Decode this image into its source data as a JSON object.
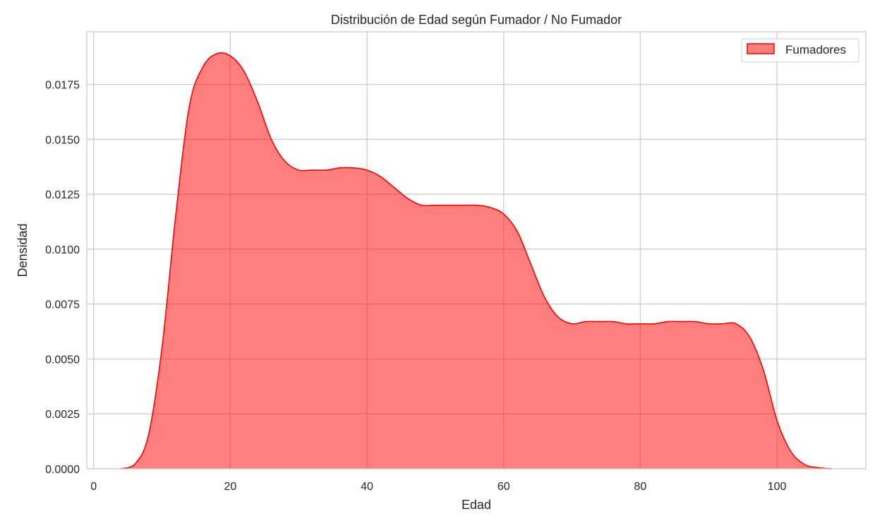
{
  "chart_data": {
    "type": "area",
    "title": "Distribución de Edad según Fumador / No Fumador",
    "xlabel": "Edad",
    "ylabel": "Densidad",
    "xlim": [
      -1,
      113
    ],
    "ylim": [
      0,
      0.0199
    ],
    "xticks": [
      0,
      20,
      40,
      60,
      80,
      100
    ],
    "xtick_labels": [
      "0",
      "20",
      "40",
      "60",
      "80",
      "100"
    ],
    "yticks": [
      0,
      0.0025,
      0.005,
      0.0075,
      0.01,
      0.0125,
      0.015,
      0.0175
    ],
    "ytick_labels": [
      "0.0000",
      "0.0025",
      "0.0050",
      "0.0075",
      "0.0100",
      "0.0125",
      "0.0150",
      "0.0175"
    ],
    "grid": true,
    "legend_position": "top-right",
    "series": [
      {
        "name": "Fumadores",
        "color": "#ff0000",
        "fill_color": "#ff7f7f",
        "x": [
          4,
          6,
          8,
          10,
          12,
          14,
          16,
          18,
          20,
          22,
          24,
          26,
          28,
          30,
          32,
          34,
          36,
          38,
          40,
          42,
          44,
          46,
          48,
          50,
          52,
          54,
          56,
          58,
          60,
          62,
          64,
          66,
          68,
          70,
          72,
          74,
          76,
          78,
          80,
          82,
          84,
          86,
          88,
          90,
          92,
          94,
          96,
          98,
          100,
          102,
          104,
          106,
          108
        ],
        "y": [
          0.0,
          0.0002,
          0.0015,
          0.0055,
          0.0115,
          0.0165,
          0.0183,
          0.0189,
          0.0188,
          0.0181,
          0.0167,
          0.015,
          0.014,
          0.0136,
          0.0136,
          0.0136,
          0.0137,
          0.0137,
          0.0136,
          0.0133,
          0.0128,
          0.0123,
          0.012,
          0.012,
          0.012,
          0.012,
          0.012,
          0.0119,
          0.0116,
          0.0108,
          0.0093,
          0.0078,
          0.0069,
          0.0066,
          0.0067,
          0.0067,
          0.0067,
          0.0066,
          0.0066,
          0.0066,
          0.0067,
          0.0067,
          0.0067,
          0.0066,
          0.0066,
          0.0066,
          0.006,
          0.0045,
          0.0022,
          0.0008,
          0.0002,
          5e-05,
          0.0
        ]
      }
    ]
  }
}
